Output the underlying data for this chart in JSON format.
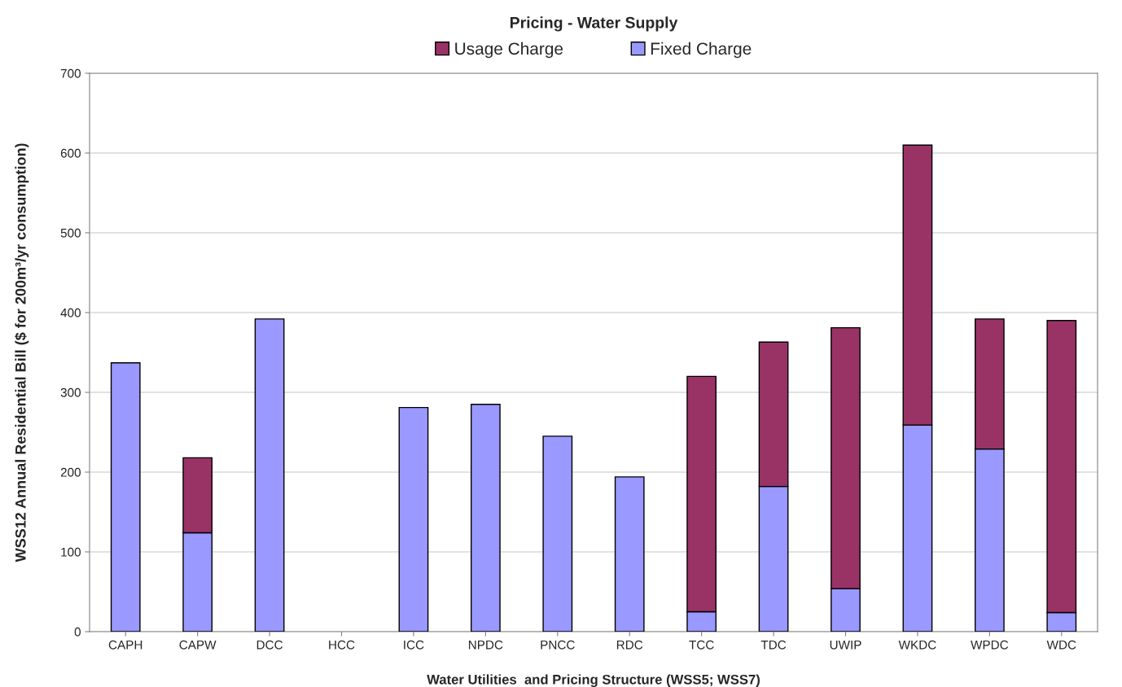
{
  "chart_data": {
    "type": "bar",
    "title": "Pricing - Water Supply",
    "xlabel": "Water Utilities  and Pricing Structure (WSS5; WSS7)",
    "ylabel": "WSS12 Annual Residential Bill ($ for 200m³/yr consumption)",
    "categories": [
      "CAPH",
      "CAPW",
      "DCC",
      "HCC",
      "ICC",
      "NPDC",
      "PNCC",
      "RDC",
      "TCC",
      "TDC",
      "UWIP",
      "WKDC",
      "WPDC",
      "WDC"
    ],
    "stacked": true,
    "series": [
      {
        "name": "Fixed Charge",
        "color": "#9999ff",
        "values": [
          337,
          124,
          392,
          null,
          281,
          285,
          245,
          194,
          25,
          182,
          54,
          259,
          229,
          24
        ]
      },
      {
        "name": "Usage Charge",
        "color": "#993366",
        "values": [
          null,
          94,
          null,
          null,
          null,
          null,
          null,
          null,
          295,
          181,
          327,
          351,
          163,
          366
        ]
      }
    ],
    "ylim": [
      0,
      700
    ],
    "yticks": [
      0,
      100,
      200,
      300,
      400,
      500,
      600,
      700
    ],
    "grid": "y",
    "legend": "top"
  }
}
